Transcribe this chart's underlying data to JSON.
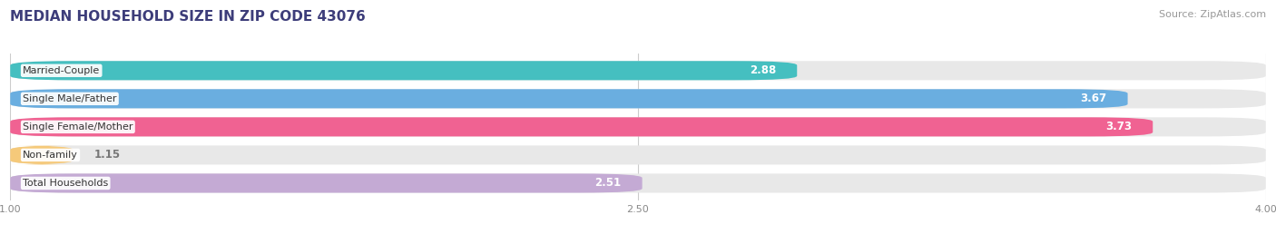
{
  "title": "MEDIAN HOUSEHOLD SIZE IN ZIP CODE 43076",
  "source": "Source: ZipAtlas.com",
  "categories": [
    "Married-Couple",
    "Single Male/Father",
    "Single Female/Mother",
    "Non-family",
    "Total Households"
  ],
  "values": [
    2.88,
    3.67,
    3.73,
    1.15,
    2.51
  ],
  "bar_colors": [
    "#45bfc0",
    "#6aaee0",
    "#f06292",
    "#f5c97a",
    "#c4aad4"
  ],
  "track_color": "#e8e8e8",
  "xlim": [
    1.0,
    4.0
  ],
  "xticks": [
    1.0,
    2.5,
    4.0
  ],
  "xtick_labels": [
    "1.00",
    "2.50",
    "4.00"
  ],
  "title_color": "#3d3d7a",
  "source_color": "#999999",
  "background_color": "#ffffff",
  "bar_height": 0.68,
  "bar_gap": 1.0,
  "figsize": [
    14.06,
    2.69
  ],
  "dpi": 100,
  "title_fontsize": 11,
  "source_fontsize": 8,
  "label_fontsize": 8,
  "value_fontsize": 8.5
}
